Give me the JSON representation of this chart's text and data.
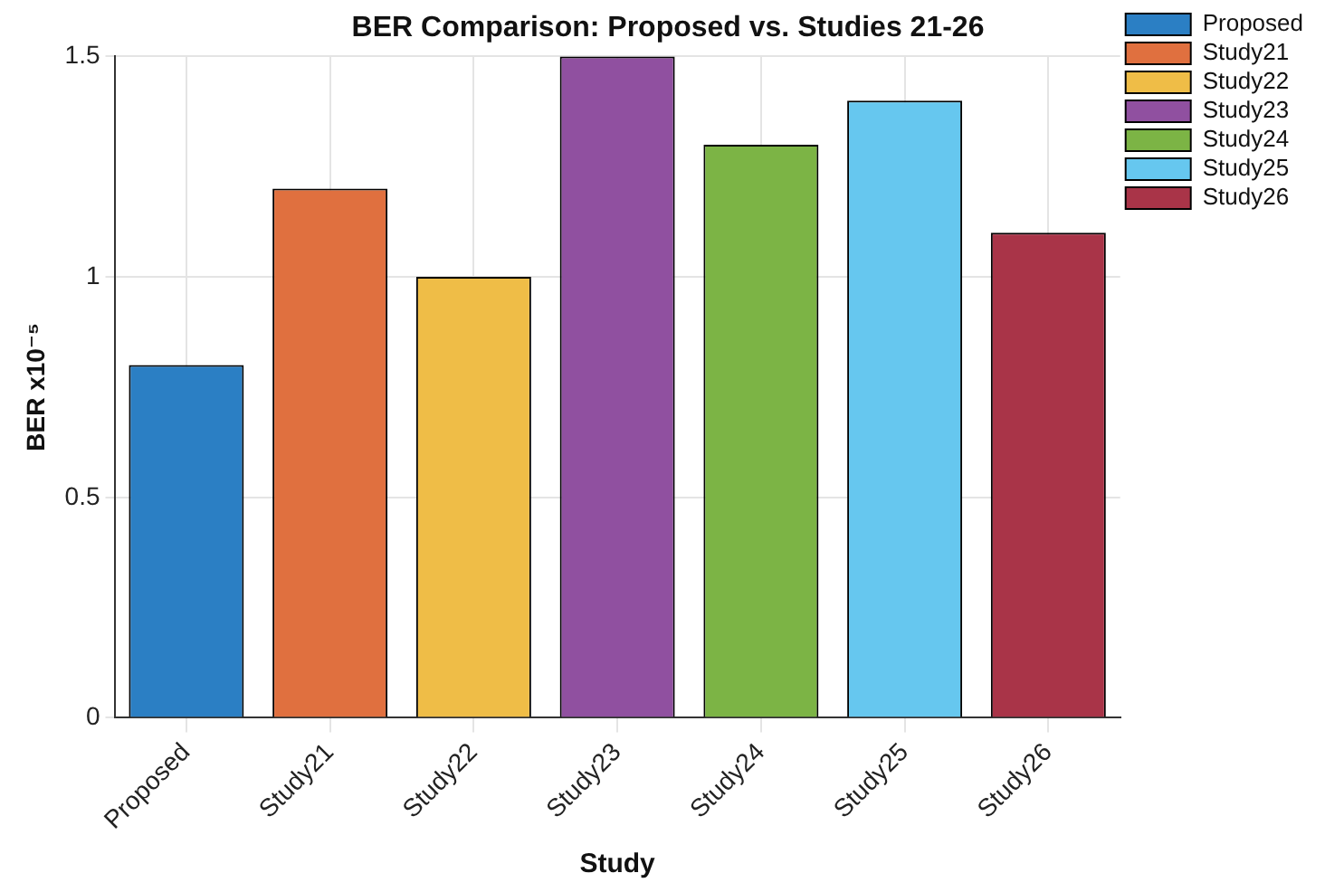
{
  "chart_data": {
    "type": "bar",
    "title": "BER Comparison: Proposed vs. Studies 21-26",
    "xlabel": "Study",
    "ylabel": "BER x10⁻⁵",
    "categories": [
      "Proposed",
      "Study21",
      "Study22",
      "Study23",
      "Study24",
      "Study25",
      "Study26"
    ],
    "series": [
      {
        "name": "Proposed",
        "color": "#2b7fc4",
        "values": [
          0.8,
          null,
          null,
          null,
          null,
          null,
          null
        ]
      },
      {
        "name": "Study21",
        "color": "#e0703f",
        "values": [
          null,
          1.2,
          null,
          null,
          null,
          null,
          null
        ]
      },
      {
        "name": "Study22",
        "color": "#efbd47",
        "values": [
          null,
          null,
          1.0,
          null,
          null,
          null,
          null
        ]
      },
      {
        "name": "Study23",
        "color": "#9050a0",
        "values": [
          null,
          null,
          null,
          1.5,
          null,
          null,
          null
        ]
      },
      {
        "name": "Study24",
        "color": "#7cb445",
        "values": [
          null,
          null,
          null,
          null,
          1.3,
          null,
          null
        ]
      },
      {
        "name": "Study25",
        "color": "#66c7ef",
        "values": [
          null,
          null,
          null,
          null,
          null,
          1.4,
          null
        ]
      },
      {
        "name": "Study26",
        "color": "#a93448",
        "values": [
          null,
          null,
          null,
          null,
          null,
          null,
          1.1
        ]
      }
    ],
    "ylim": [
      0,
      1.5
    ],
    "yticks": [
      0,
      0.5,
      1,
      1.5
    ],
    "grid": true,
    "legend": "top right"
  }
}
